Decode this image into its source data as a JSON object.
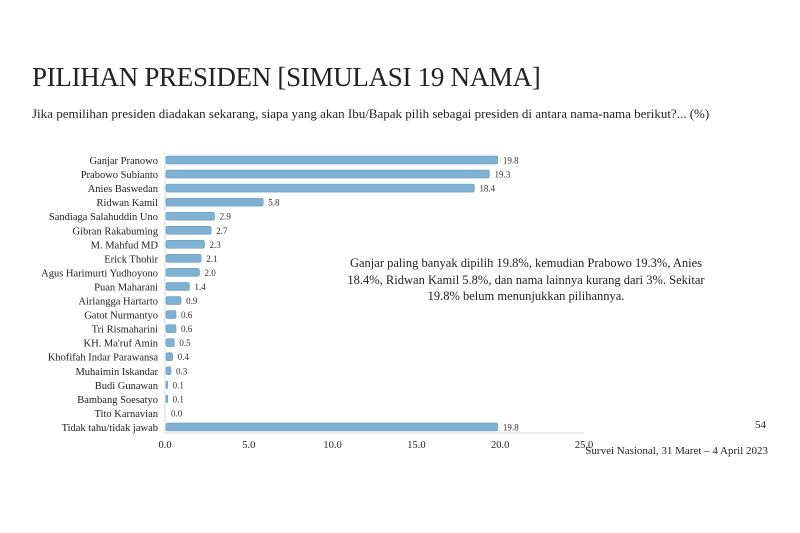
{
  "chart_data": {
    "type": "bar",
    "orientation": "horizontal",
    "title": "PILIHAN PRESIDEN [SIMULASI 19 NAMA]",
    "subtitle": "Jika pemilihan presiden diadakan sekarang, siapa yang akan Ibu/Bapak pilih sebagai presiden di antara nama-nama berikut?... (%)",
    "categories": [
      "Ganjar Pranowo",
      "Prabowo Subianto",
      "Anies Baswedan",
      "Ridwan Kamil",
      "Sandiaga Salahuddin Uno",
      "Gibran Rakabuming",
      "M. Mahfud MD",
      "Erick Thohir",
      "Agus Harimurti Yudhoyono",
      "Puan Maharani",
      "Airlangga Hartarto",
      "Gatot Nurmantyo",
      "Tri Rismaharini",
      "KH. Ma'ruf Amin",
      "Khofifah Indar Parawansa",
      "Muhaimin Iskandar",
      "Budi Gunawan",
      "Bambang Soesatyo",
      "Tito Karnavian",
      "Tidak tahu/tidak jawab"
    ],
    "values": [
      19.8,
      19.3,
      18.4,
      5.8,
      2.9,
      2.7,
      2.3,
      2.1,
      2.0,
      1.4,
      0.9,
      0.6,
      0.6,
      0.5,
      0.4,
      0.3,
      0.1,
      0.1,
      0.0,
      19.8
    ],
    "xlim": [
      0,
      25
    ],
    "xticks": [
      "0.0",
      "5.0",
      "10.0",
      "15.0",
      "20.0",
      "25.0"
    ],
    "grid": false,
    "bar_color": "#7fb1d3",
    "annotation": "Ganjar paling banyak dipilih 19.8%, kemudian Prabowo 19.3%, Anies 18.4%, Ridwan Kamil 5.8%, dan nama lainnya kurang dari 3%. Sekitar 19.8% belum menunjukkan pilihannya."
  },
  "page_number": "54",
  "footer": "Survei Nasional, 31 Maret – 4 April 2023"
}
